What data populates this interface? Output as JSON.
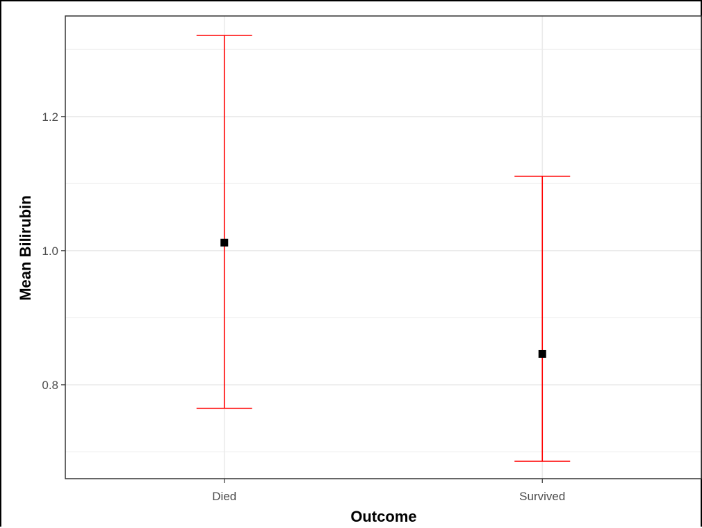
{
  "chart_data": {
    "type": "errorbar",
    "xlabel": "Outcome",
    "ylabel": "Mean Bilirubin",
    "categories": [
      "Died",
      "Survived"
    ],
    "series": [
      {
        "points": [
          {
            "category": "Died",
            "mean": 1.012,
            "lower": 0.765,
            "upper": 1.321
          },
          {
            "category": "Survived",
            "mean": 0.846,
            "lower": 0.686,
            "upper": 1.111
          }
        ]
      }
    ],
    "ylim": [
      0.66,
      1.35
    ],
    "y_ticks": [
      0.8,
      1.0,
      1.2
    ],
    "y_tick_labels": [
      "0.8",
      "1.0",
      "1.2"
    ],
    "y_minor_ticks": [
      0.7,
      0.9,
      1.1,
      1.3
    ],
    "grid": true,
    "colors": {
      "errorbar": "#ff0000",
      "point": "#000000",
      "grid": "#ebebeb",
      "panel_border": "#333333"
    }
  }
}
